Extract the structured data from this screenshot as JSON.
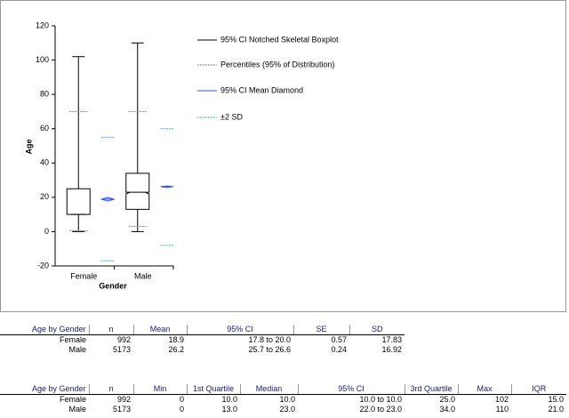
{
  "chart_data": {
    "type": "box",
    "y_label": "Age",
    "x_label": "Gender",
    "categories": [
      "Female",
      "Male"
    ],
    "ylim": [
      -20,
      120
    ],
    "yticks": [
      -20,
      0,
      20,
      40,
      60,
      80,
      100,
      120
    ],
    "boxes": [
      {
        "min": 0,
        "q1": 10,
        "median": 10,
        "q3": 25,
        "max": 102,
        "notch": [
          10,
          10
        ],
        "percentiles": [
          0.5,
          70
        ],
        "mean": 18.9,
        "mean_ci": [
          17.8,
          20.0
        ],
        "sd_lines": [
          -17,
          55
        ]
      },
      {
        "min": 0,
        "q1": 13,
        "median": 23,
        "q3": 34,
        "max": 110,
        "notch": [
          22,
          23
        ],
        "percentiles": [
          3,
          70
        ],
        "mean": 26.2,
        "mean_ci": [
          25.7,
          26.6
        ],
        "sd_lines": [
          -8,
          60
        ]
      }
    ],
    "legend": [
      {
        "label": "95% CI Notched Skeletal Boxplot",
        "color": "#000000"
      },
      {
        "label": "Percentiles (95% of Distribution)",
        "color": "#808080"
      },
      {
        "label": "95% CI Mean Diamond",
        "color": "#3355ff"
      },
      {
        "label": "±2 SD",
        "color": "#2bb5c8"
      }
    ]
  },
  "tables": [
    {
      "header": [
        "Age by Gender",
        "n",
        "Mean",
        "95% CI",
        "SE",
        "SD"
      ],
      "rows": [
        [
          "Female",
          "992",
          "18.9",
          "17.8  to 20.0",
          "0.57",
          "17.83"
        ],
        [
          "Male",
          "5173",
          "26.2",
          "25.7  to 26.6",
          "0.24",
          "16.92"
        ]
      ]
    },
    {
      "header": [
        "Age by Gender",
        "n",
        "Min",
        "1st Quartile",
        "Median",
        "95% CI",
        "3rd Quartile",
        "Max",
        "IQR"
      ],
      "rows": [
        [
          "Female",
          "992",
          "0",
          "10.0",
          "10.0",
          "10.0  to 10.0",
          "25.0",
          "102",
          "15.0"
        ],
        [
          "Male",
          "5173",
          "0",
          "13.0",
          "23.0",
          "22.0  to 23.0",
          "34.0",
          "110",
          "21.0"
        ]
      ]
    }
  ]
}
